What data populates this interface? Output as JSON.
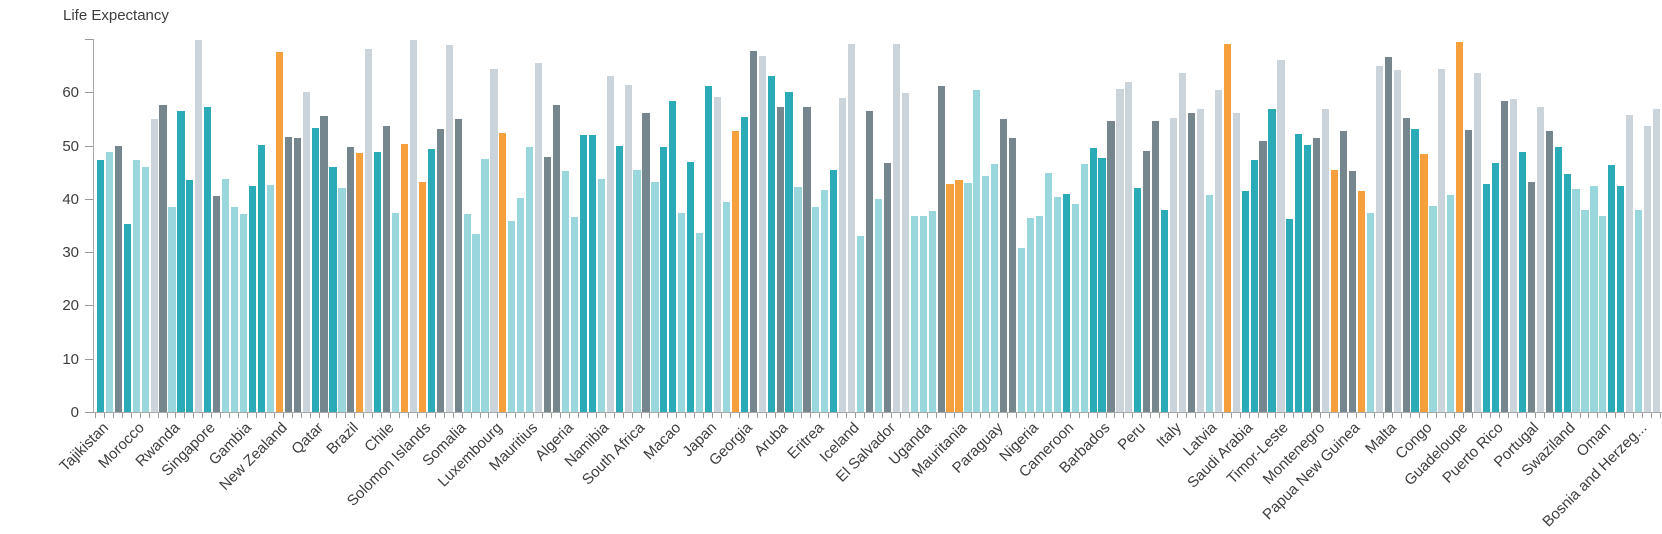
{
  "chart_data": {
    "type": "bar",
    "title": "Life Expectancy",
    "xlabel": "",
    "ylabel": "Life Expectancy",
    "ylim": [
      0,
      70
    ],
    "yticks": [
      0,
      10,
      20,
      30,
      40,
      50,
      60
    ],
    "top_tick_value": 70,
    "grid": false,
    "legend": false,
    "x_label_interval": 4,
    "x_label_rotation_deg": 45,
    "axis_color": "#a8a8a8",
    "tick_color": "#999999",
    "text_color": "#3d3d3d",
    "color_map": {
      "T": "#2baab8",
      "C": "#9ad7dd",
      "D": "#75868f",
      "G": "#cbd4da",
      "O": "#f5a03c"
    },
    "color_names": {
      "T": "teal",
      "C": "light-cyan",
      "D": "slate-gray",
      "G": "light-gray",
      "O": "orange"
    },
    "bars": [
      [
        "Tajikistan",
        47.3,
        "T"
      ],
      [
        "",
        48.7,
        "C"
      ],
      [
        "",
        50.0,
        "D"
      ],
      [
        "",
        35.2,
        "T"
      ],
      [
        "Morocco",
        47.3,
        "C"
      ],
      [
        "",
        45.9,
        "C"
      ],
      [
        "",
        54.9,
        "G"
      ],
      [
        "",
        57.6,
        "D"
      ],
      [
        "Rwanda",
        38.5,
        "C"
      ],
      [
        "",
        56.4,
        "T"
      ],
      [
        "",
        43.5,
        "T"
      ],
      [
        "",
        69.9,
        "G"
      ],
      [
        "Singapore",
        57.3,
        "T"
      ],
      [
        "",
        40.5,
        "D"
      ],
      [
        "",
        43.8,
        "C"
      ],
      [
        "",
        38.5,
        "C"
      ],
      [
        "Gambia",
        37.1,
        "C"
      ],
      [
        "",
        42.5,
        "T"
      ],
      [
        "",
        50.1,
        "T"
      ],
      [
        "",
        42.6,
        "C"
      ],
      [
        "New Zealand",
        67.5,
        "O"
      ],
      [
        "",
        51.6,
        "D"
      ],
      [
        "",
        51.5,
        "D"
      ],
      [
        "",
        60.1,
        "G"
      ],
      [
        "Qatar",
        53.3,
        "T"
      ],
      [
        "",
        55.5,
        "D"
      ],
      [
        "",
        45.9,
        "T"
      ],
      [
        "",
        42.1,
        "C"
      ],
      [
        "Brazil",
        49.8,
        "D"
      ],
      [
        "",
        48.6,
        "O"
      ],
      [
        "",
        68.2,
        "G"
      ],
      [
        "",
        48.7,
        "T"
      ],
      [
        "Chile",
        53.6,
        "D"
      ],
      [
        "",
        37.4,
        "C"
      ],
      [
        "",
        50.3,
        "O"
      ],
      [
        "",
        69.9,
        "G"
      ],
      [
        "Solomon Islands",
        43.2,
        "O"
      ],
      [
        "",
        49.3,
        "T"
      ],
      [
        "",
        53.2,
        "D"
      ],
      [
        "",
        68.8,
        "G"
      ],
      [
        "Somalia",
        54.9,
        "D"
      ],
      [
        "",
        37.2,
        "C"
      ],
      [
        "",
        33.4,
        "C"
      ],
      [
        "",
        47.4,
        "C"
      ],
      [
        "Luxembourg",
        64.3,
        "G"
      ],
      [
        "",
        52.4,
        "O"
      ],
      [
        "",
        35.8,
        "C"
      ],
      [
        "",
        40.1,
        "C"
      ],
      [
        "Mauritius",
        49.8,
        "C"
      ],
      [
        "",
        65.5,
        "G"
      ],
      [
        "",
        47.9,
        "D"
      ],
      [
        "",
        57.6,
        "D"
      ],
      [
        "Algeria",
        45.2,
        "C"
      ],
      [
        "",
        36.6,
        "C"
      ],
      [
        "",
        51.9,
        "T"
      ],
      [
        "",
        51.9,
        "T"
      ],
      [
        "Namibia",
        43.8,
        "C"
      ],
      [
        "",
        63.1,
        "G"
      ],
      [
        "",
        50.0,
        "T"
      ],
      [
        "",
        61.3,
        "G"
      ],
      [
        "South Africa",
        45.4,
        "C"
      ],
      [
        "",
        56.1,
        "D"
      ],
      [
        "",
        43.1,
        "C"
      ],
      [
        "",
        49.8,
        "T"
      ],
      [
        "Macao",
        58.3,
        "T"
      ],
      [
        "",
        37.4,
        "C"
      ],
      [
        "",
        46.9,
        "T"
      ],
      [
        "",
        33.6,
        "C"
      ],
      [
        "Japan",
        61.2,
        "T"
      ],
      [
        "",
        59.2,
        "G"
      ],
      [
        "",
        39.4,
        "C"
      ],
      [
        "",
        52.7,
        "O"
      ],
      [
        "Georgia",
        55.3,
        "T"
      ],
      [
        "",
        67.7,
        "D"
      ],
      [
        "",
        66.9,
        "G"
      ],
      [
        "",
        63.0,
        "T"
      ],
      [
        "Aruba",
        57.3,
        "D"
      ],
      [
        "",
        60.1,
        "T"
      ],
      [
        "",
        42.3,
        "C"
      ],
      [
        "",
        57.2,
        "D"
      ],
      [
        "Eritrea",
        38.5,
        "C"
      ],
      [
        "",
        41.7,
        "C"
      ],
      [
        "",
        45.4,
        "T"
      ],
      [
        "",
        58.9,
        "G"
      ],
      [
        "Iceland",
        69.0,
        "G"
      ],
      [
        "",
        33.0,
        "C"
      ],
      [
        "",
        56.4,
        "D"
      ],
      [
        "",
        40.0,
        "C"
      ],
      [
        "El Salvador",
        46.8,
        "D"
      ],
      [
        "",
        69.1,
        "G"
      ],
      [
        "",
        59.9,
        "G"
      ],
      [
        "",
        36.7,
        "C"
      ],
      [
        "Uganda",
        36.8,
        "C"
      ],
      [
        "",
        37.7,
        "C"
      ],
      [
        "",
        61.1,
        "D"
      ],
      [
        "",
        42.7,
        "O"
      ],
      [
        "Mauritania",
        43.5,
        "O"
      ],
      [
        "",
        42.9,
        "C"
      ],
      [
        "",
        60.4,
        "C"
      ],
      [
        "",
        44.3,
        "C"
      ],
      [
        "Paraguay",
        46.5,
        "C"
      ],
      [
        "",
        55.0,
        "D"
      ],
      [
        "",
        51.4,
        "D"
      ],
      [
        "",
        30.7,
        "C"
      ],
      [
        "Nigeria",
        36.4,
        "C"
      ],
      [
        "",
        36.7,
        "C"
      ],
      [
        "",
        44.8,
        "C"
      ],
      [
        "",
        40.4,
        "C"
      ],
      [
        "Cameroon",
        41.0,
        "T"
      ],
      [
        "",
        39.1,
        "C"
      ],
      [
        "",
        46.5,
        "C"
      ],
      [
        "",
        49.5,
        "T"
      ],
      [
        "Barbados",
        47.6,
        "T"
      ],
      [
        "",
        54.6,
        "D"
      ],
      [
        "",
        60.7,
        "G"
      ],
      [
        "",
        62.0,
        "G"
      ],
      [
        "Peru",
        42.0,
        "T"
      ],
      [
        "",
        48.9,
        "D"
      ],
      [
        "",
        54.7,
        "D"
      ],
      [
        "",
        37.9,
        "T"
      ],
      [
        "Italy",
        55.2,
        "G"
      ],
      [
        "",
        63.7,
        "G"
      ],
      [
        "",
        56.1,
        "D"
      ],
      [
        "",
        56.9,
        "G"
      ],
      [
        "Latvia",
        40.8,
        "C"
      ],
      [
        "",
        60.5,
        "G"
      ],
      [
        "",
        69.1,
        "O"
      ],
      [
        "",
        56.1,
        "G"
      ],
      [
        "Saudi Arabia",
        41.5,
        "T"
      ],
      [
        "",
        47.3,
        "T"
      ],
      [
        "",
        50.8,
        "D"
      ],
      [
        "",
        56.9,
        "T"
      ],
      [
        "Timor-Leste",
        66.0,
        "G"
      ],
      [
        "",
        36.2,
        "T"
      ],
      [
        "",
        52.2,
        "T"
      ],
      [
        "",
        50.1,
        "T"
      ],
      [
        "Montenegro",
        51.5,
        "D"
      ],
      [
        "",
        56.8,
        "G"
      ],
      [
        "",
        45.4,
        "O"
      ],
      [
        "",
        52.8,
        "D"
      ],
      [
        "Papua New Guinea",
        45.3,
        "D"
      ],
      [
        "",
        41.5,
        "O"
      ],
      [
        "",
        37.4,
        "C"
      ],
      [
        "",
        64.9,
        "G"
      ],
      [
        "Malta",
        66.7,
        "D"
      ],
      [
        "",
        64.1,
        "G"
      ],
      [
        "",
        55.2,
        "D"
      ],
      [
        "",
        53.1,
        "T"
      ],
      [
        "Congo",
        48.4,
        "O"
      ],
      [
        "",
        38.7,
        "C"
      ],
      [
        "",
        64.3,
        "G"
      ],
      [
        "",
        40.7,
        "C"
      ],
      [
        "Guadeloupe",
        69.4,
        "O"
      ],
      [
        "",
        52.9,
        "D"
      ],
      [
        "",
        63.6,
        "G"
      ],
      [
        "",
        42.7,
        "T"
      ],
      [
        "Puerto Rico",
        46.8,
        "T"
      ],
      [
        "",
        58.3,
        "D"
      ],
      [
        "",
        58.8,
        "G"
      ],
      [
        "",
        48.7,
        "T"
      ],
      [
        "Portugal",
        43.1,
        "D"
      ],
      [
        "",
        57.2,
        "G"
      ],
      [
        "",
        52.8,
        "D"
      ],
      [
        "",
        49.7,
        "T"
      ],
      [
        "Swaziland",
        44.6,
        "T"
      ],
      [
        "",
        41.8,
        "C"
      ],
      [
        "",
        37.9,
        "C"
      ],
      [
        "",
        42.4,
        "C"
      ],
      [
        "Oman",
        36.8,
        "C"
      ],
      [
        "",
        46.3,
        "T"
      ],
      [
        "",
        42.4,
        "T"
      ],
      [
        "",
        55.7,
        "G"
      ],
      [
        "Bosnia and Herzeg...",
        37.9,
        "C"
      ],
      [
        "",
        53.6,
        "G"
      ],
      [
        "",
        56.9,
        "G"
      ]
    ]
  }
}
